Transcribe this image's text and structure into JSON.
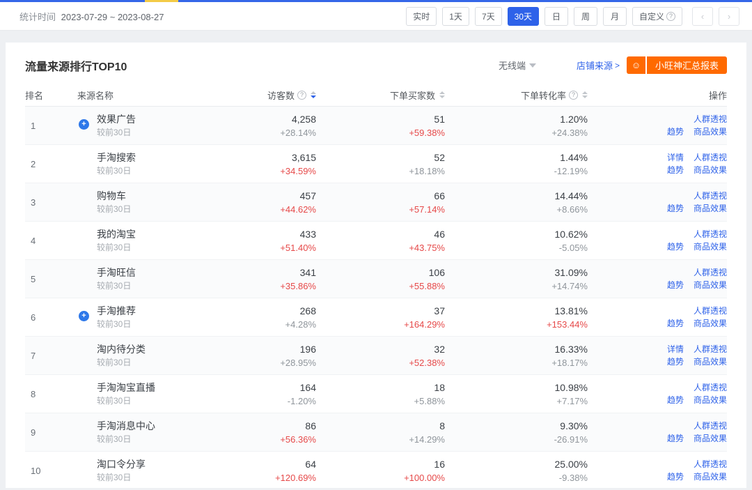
{
  "colors": {
    "accent": "#2e62e9",
    "red": "#e64949",
    "orange": "#ff6a00",
    "strip_blue": "#3567e8",
    "strip_yellow": "#f3cb47"
  },
  "toolbar": {
    "stat_time_label": "统计时间",
    "date_range": "2023-07-29 ~ 2023-08-27",
    "periods": [
      {
        "label": "实时",
        "active": false,
        "help": false
      },
      {
        "label": "1天",
        "active": false,
        "help": false
      },
      {
        "label": "7天",
        "active": false,
        "help": false
      },
      {
        "label": "30天",
        "active": true,
        "help": false
      },
      {
        "label": "日",
        "active": false,
        "help": false
      },
      {
        "label": "周",
        "active": false,
        "help": false
      },
      {
        "label": "月",
        "active": false,
        "help": false
      },
      {
        "label": "自定义",
        "active": false,
        "help": true
      }
    ],
    "help_glyph": "?",
    "prev_glyph": "‹",
    "next_glyph": "›"
  },
  "panel": {
    "title": "流量来源排行TOP10",
    "terminal_selector": "无线端",
    "source_link": "店铺来源",
    "source_arrow": ">",
    "wang_icon_glyph": "☺",
    "report_button": "小旺神汇总报表"
  },
  "table": {
    "columns": [
      {
        "label": "排名"
      },
      {
        "label": "来源名称"
      },
      {
        "label": "访客数",
        "help": true,
        "sort": "desc"
      },
      {
        "label": "下单买家数",
        "help": false,
        "sort": "none"
      },
      {
        "label": "下单转化率",
        "help": true,
        "sort": "none"
      },
      {
        "label": "操作"
      }
    ],
    "compare_label": "较前30日",
    "badge_glyph": "+",
    "rows": [
      {
        "rank": "1",
        "name": "效果广告",
        "badge": true,
        "visitors": "4,258",
        "visitors_change": "+28.14%",
        "visitors_red": false,
        "buyers": "51",
        "buyers_change": "+59.38%",
        "buyers_red": true,
        "conv": "1.20%",
        "conv_change": "+24.38%",
        "conv_red": false,
        "ops1": [
          "人群透视"
        ],
        "ops2": [
          "趋势",
          "商品效果"
        ]
      },
      {
        "rank": "2",
        "name": "手淘搜索",
        "badge": false,
        "visitors": "3,615",
        "visitors_change": "+34.59%",
        "visitors_red": true,
        "buyers": "52",
        "buyers_change": "+18.18%",
        "buyers_red": false,
        "conv": "1.44%",
        "conv_change": "-12.19%",
        "conv_red": false,
        "ops1": [
          "详情",
          "人群透视"
        ],
        "ops2": [
          "趋势",
          "商品效果"
        ]
      },
      {
        "rank": "3",
        "name": "购物车",
        "badge": false,
        "visitors": "457",
        "visitors_change": "+44.62%",
        "visitors_red": true,
        "buyers": "66",
        "buyers_change": "+57.14%",
        "buyers_red": true,
        "conv": "14.44%",
        "conv_change": "+8.66%",
        "conv_red": false,
        "ops1": [
          "人群透视"
        ],
        "ops2": [
          "趋势",
          "商品效果"
        ]
      },
      {
        "rank": "4",
        "name": "我的淘宝",
        "badge": false,
        "visitors": "433",
        "visitors_change": "+51.40%",
        "visitors_red": true,
        "buyers": "46",
        "buyers_change": "+43.75%",
        "buyers_red": true,
        "conv": "10.62%",
        "conv_change": "-5.05%",
        "conv_red": false,
        "ops1": [
          "人群透视"
        ],
        "ops2": [
          "趋势",
          "商品效果"
        ]
      },
      {
        "rank": "5",
        "name": "手淘旺信",
        "badge": false,
        "visitors": "341",
        "visitors_change": "+35.86%",
        "visitors_red": true,
        "buyers": "106",
        "buyers_change": "+55.88%",
        "buyers_red": true,
        "conv": "31.09%",
        "conv_change": "+14.74%",
        "conv_red": false,
        "ops1": [
          "人群透视"
        ],
        "ops2": [
          "趋势",
          "商品效果"
        ]
      },
      {
        "rank": "6",
        "name": "手淘推荐",
        "badge": true,
        "visitors": "268",
        "visitors_change": "+4.28%",
        "visitors_red": false,
        "buyers": "37",
        "buyers_change": "+164.29%",
        "buyers_red": true,
        "conv": "13.81%",
        "conv_change": "+153.44%",
        "conv_red": true,
        "ops1": [
          "人群透视"
        ],
        "ops2": [
          "趋势",
          "商品效果"
        ]
      },
      {
        "rank": "7",
        "name": "淘内待分类",
        "badge": false,
        "visitors": "196",
        "visitors_change": "+28.95%",
        "visitors_red": false,
        "buyers": "32",
        "buyers_change": "+52.38%",
        "buyers_red": true,
        "conv": "16.33%",
        "conv_change": "+18.17%",
        "conv_red": false,
        "ops1": [
          "详情",
          "人群透视"
        ],
        "ops2": [
          "趋势",
          "商品效果"
        ]
      },
      {
        "rank": "8",
        "name": "手淘淘宝直播",
        "badge": false,
        "visitors": "164",
        "visitors_change": "-1.20%",
        "visitors_red": false,
        "buyers": "18",
        "buyers_change": "+5.88%",
        "buyers_red": false,
        "conv": "10.98%",
        "conv_change": "+7.17%",
        "conv_red": false,
        "ops1": [
          "人群透视"
        ],
        "ops2": [
          "趋势",
          "商品效果"
        ]
      },
      {
        "rank": "9",
        "name": "手淘消息中心",
        "badge": false,
        "visitors": "86",
        "visitors_change": "+56.36%",
        "visitors_red": true,
        "buyers": "8",
        "buyers_change": "+14.29%",
        "buyers_red": false,
        "conv": "9.30%",
        "conv_change": "-26.91%",
        "conv_red": false,
        "ops1": [
          "人群透视"
        ],
        "ops2": [
          "趋势",
          "商品效果"
        ]
      },
      {
        "rank": "10",
        "name": "淘口令分享",
        "badge": false,
        "visitors": "64",
        "visitors_change": "+120.69%",
        "visitors_red": true,
        "buyers": "16",
        "buyers_change": "+100.00%",
        "buyers_red": true,
        "conv": "25.00%",
        "conv_change": "-9.38%",
        "conv_red": false,
        "ops1": [
          "人群透视"
        ],
        "ops2": [
          "趋势",
          "商品效果"
        ]
      }
    ],
    "op_names": {
      "详情": "op-detail-link",
      "人群透视": "op-audience-insight-link",
      "趋势": "op-trend-link",
      "商品效果": "op-product-effect-link"
    }
  }
}
